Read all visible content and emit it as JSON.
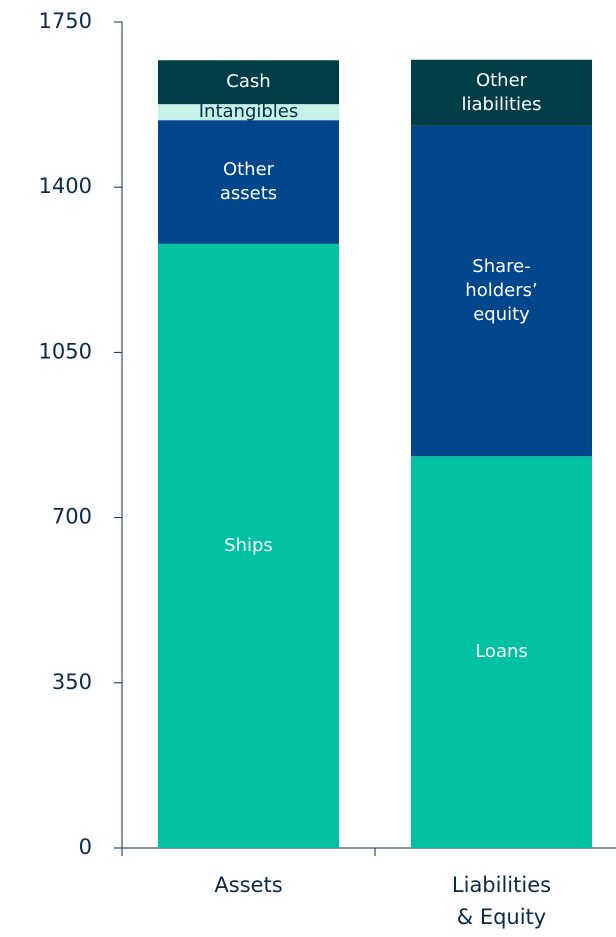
{
  "chart_data": {
    "type": "stacked_bar",
    "categories": [
      "Assets",
      "Liabilities\n& Equity"
    ],
    "series": [
      {
        "name": "Ships",
        "color": "#00c2a2",
        "values": [
          1280,
          null
        ]
      },
      {
        "name": "Other\nassets",
        "color": "#00468c",
        "values": [
          262,
          null
        ]
      },
      {
        "name": "Intangibles",
        "color": "#c4f2e6",
        "values": [
          34,
          null
        ]
      },
      {
        "name": "Cash",
        "color": "#003d47",
        "values": [
          93,
          null
        ]
      },
      {
        "name": "Loans",
        "color": "#00c2a2",
        "values": [
          null,
          830
        ]
      },
      {
        "name": "Share-\nholders’\nequity",
        "color": "#00468c",
        "values": [
          null,
          700
        ]
      },
      {
        "name": "Other\nliabilities",
        "color": "#003d47",
        "values": [
          null,
          140
        ]
      }
    ],
    "ylim": [
      0,
      1750
    ],
    "yticks": [
      0,
      350,
      700,
      1050,
      1400,
      1750
    ]
  }
}
